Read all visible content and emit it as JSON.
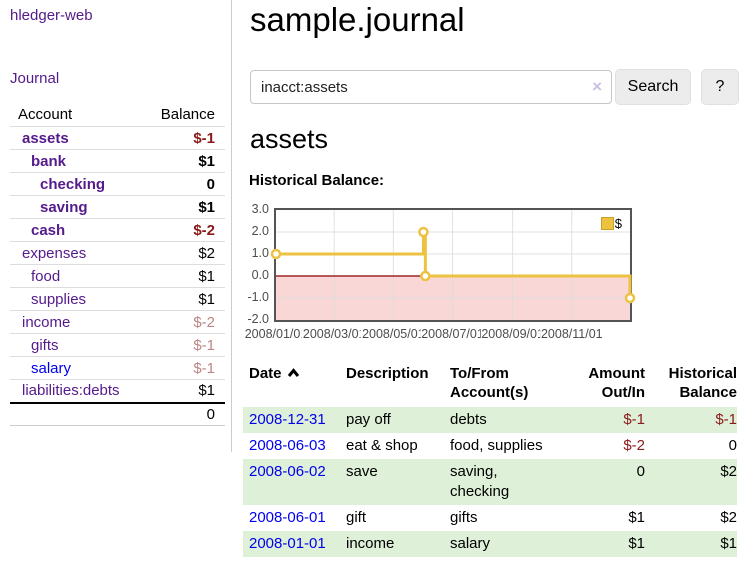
{
  "sidebar": {
    "app_title": "hledger-web",
    "journal_link": "Journal",
    "table": {
      "account_header": "Account",
      "balance_header": "Balance",
      "rows": [
        {
          "name": "assets",
          "balance": "$-1",
          "level": 0,
          "in_account": true,
          "negative": true,
          "link": "visited"
        },
        {
          "name": "bank",
          "balance": "$1",
          "level": 1,
          "in_account": true,
          "negative": false,
          "link": "visited"
        },
        {
          "name": "checking",
          "balance": "0",
          "level": 2,
          "in_account": true,
          "negative": false,
          "link": "visited"
        },
        {
          "name": "saving",
          "balance": "$1",
          "level": 2,
          "in_account": true,
          "negative": false,
          "link": "visited"
        },
        {
          "name": "cash",
          "balance": "$-2",
          "level": 1,
          "in_account": true,
          "negative": true,
          "link": "visited"
        },
        {
          "name": "expenses",
          "balance": "$2",
          "level": 0,
          "in_account": false,
          "negative": false,
          "link": "visited"
        },
        {
          "name": "food",
          "balance": "$1",
          "level": 1,
          "in_account": false,
          "negative": false,
          "link": "visited"
        },
        {
          "name": "supplies",
          "balance": "$1",
          "level": 1,
          "in_account": false,
          "negative": false,
          "link": "visited"
        },
        {
          "name": "income",
          "balance": "$-2",
          "level": 0,
          "in_account": false,
          "negative": true,
          "link": "visited"
        },
        {
          "name": "gifts",
          "balance": "$-1",
          "level": 1,
          "in_account": false,
          "negative": true,
          "link": "visited"
        },
        {
          "name": "salary",
          "balance": "$-1",
          "level": 1,
          "in_account": false,
          "negative": true,
          "link": "unvisited"
        },
        {
          "name": "liabilities:debts",
          "balance": "$1",
          "level": 0,
          "in_account": false,
          "negative": false,
          "link": "visited"
        }
      ],
      "total": "0"
    }
  },
  "main": {
    "title": "sample.journal",
    "search": {
      "value": "inacct:assets",
      "clear_icon": "×",
      "button_label": "Search",
      "help_label": "?"
    },
    "account_heading": "assets",
    "register": {
      "headers": [
        {
          "label": "Date",
          "sorted": "asc"
        },
        {
          "label": "Description"
        },
        {
          "label": "To/From Account(s)"
        },
        {
          "label": "Amount Out/In"
        },
        {
          "label": "Historical Balance"
        }
      ],
      "rows": [
        {
          "date": "2008-12-31",
          "description": "pay off",
          "accounts": "debts",
          "amount": "$-1",
          "amount_negative": true,
          "balance": "$-1",
          "balance_negative": true
        },
        {
          "date": "2008-06-03",
          "description": "eat & shop",
          "accounts": "food, supplies",
          "amount": "$-2",
          "amount_negative": true,
          "balance": "0",
          "balance_negative": false
        },
        {
          "date": "2008-06-02",
          "description": "save",
          "accounts": "saving, checking",
          "amount": "0",
          "amount_negative": false,
          "balance": "$2",
          "balance_negative": false
        },
        {
          "date": "2008-06-01",
          "description": "gift",
          "accounts": "gifts",
          "amount": "$1",
          "amount_negative": false,
          "balance": "$2",
          "balance_negative": false
        },
        {
          "date": "2008-01-01",
          "description": "income",
          "accounts": "salary",
          "amount": "$1",
          "amount_negative": false,
          "balance": "$1",
          "balance_negative": false
        }
      ]
    }
  },
  "chart_data": {
    "type": "line",
    "step": true,
    "title": "Historical Balance:",
    "series": [
      {
        "name": "$",
        "color": "#edc240",
        "points": [
          [
            "2008-01-01",
            1
          ],
          [
            "2008-06-01",
            2
          ],
          [
            "2008-06-03",
            0
          ],
          [
            "2008-12-31",
            -1
          ]
        ]
      }
    ],
    "x_ticks": [
      "2008/01/01",
      "2008/03/01",
      "2008/05/01",
      "2008/07/01",
      "2008/09/01",
      "2008/11/01"
    ],
    "y_ticks": [
      3.0,
      2.0,
      1.0,
      0.0,
      -1.0,
      -2.0
    ],
    "xlim": [
      "2008-01-01",
      "2008-12-31"
    ],
    "ylim": [
      -2,
      3
    ],
    "grid": true,
    "legend": {
      "label": "$",
      "position": "top-right"
    },
    "negative_region_color": "#f9d7d7",
    "zero_line_color": "#8b0000",
    "grid_color": "#dcdcdc"
  },
  "colors": {
    "link": "#0000ee",
    "link_visited": "#551a8b",
    "negative": "#8b1a1a",
    "negative_dim": "#bb8686",
    "row_highlight": "#dff0d8",
    "chart_line": "#edc240"
  }
}
